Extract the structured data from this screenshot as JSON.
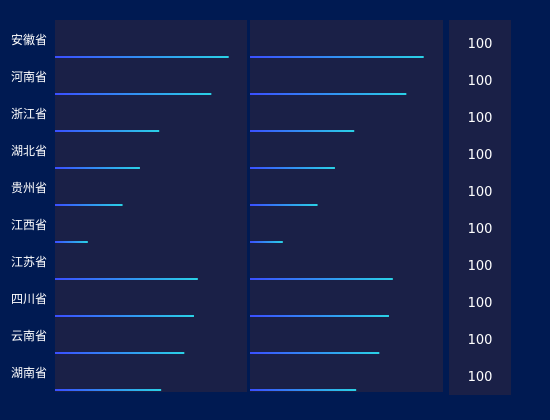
{
  "chart_data": {
    "type": "bar",
    "categories": [
      "安徽省",
      "河南省",
      "浙江省",
      "湖北省",
      "贵州省",
      "江西省",
      "江苏省",
      "四川省",
      "云南省",
      "湖南省"
    ],
    "series": [
      {
        "values": [
          90,
          81,
          54,
          44,
          35,
          17,
          74,
          72,
          67,
          55
        ]
      },
      {
        "values": [
          90,
          81,
          54,
          44,
          35,
          17,
          74,
          72,
          67,
          55
        ]
      }
    ],
    "right_values": [
      100,
      100,
      100,
      100,
      100,
      100,
      100,
      100,
      100,
      100
    ],
    "xlim": [
      0,
      100
    ],
    "colors": {
      "background": "#001a52",
      "panel": "#1a2047",
      "bar_start": "#3a4fff",
      "bar_end": "#2ad1e6"
    }
  }
}
